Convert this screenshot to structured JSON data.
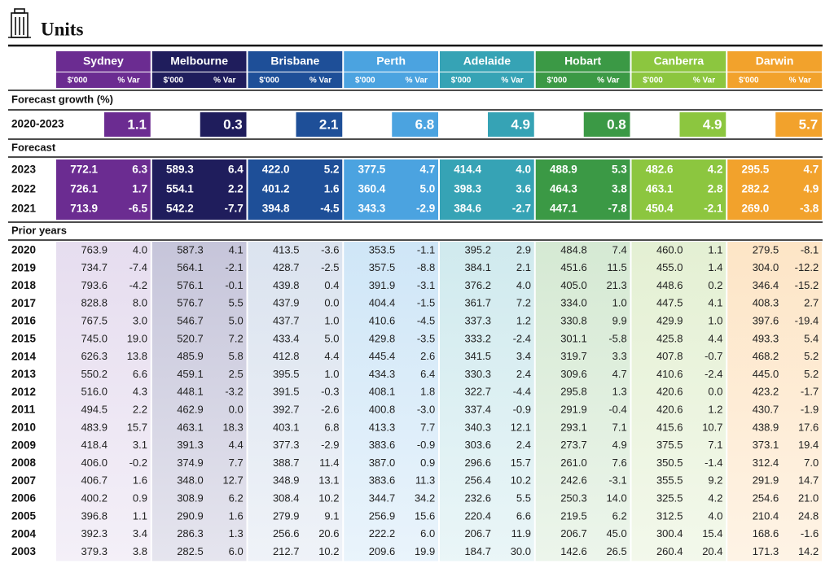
{
  "header": {
    "title": "Units"
  },
  "table": {
    "cities": [
      "Sydney",
      "Melbourne",
      "Brisbane",
      "Perth",
      "Adelaide",
      "Hobart",
      "Canberra",
      "Darwin"
    ],
    "columns": [
      "$'000",
      "% Var"
    ],
    "forecast_growth": {
      "label": "Forecast growth (%)",
      "period": "2020-2023",
      "values": [
        "1.1",
        "0.3",
        "2.1",
        "6.8",
        "4.9",
        "0.8",
        "4.9",
        "5.7"
      ]
    },
    "forecast": {
      "label": "Forecast",
      "rows": [
        {
          "year": "2023",
          "cells": [
            "772.1",
            "6.3",
            "589.3",
            "6.4",
            "422.0",
            "5.2",
            "377.5",
            "4.7",
            "414.4",
            "4.0",
            "488.9",
            "5.3",
            "482.6",
            "4.2",
            "295.5",
            "4.7"
          ]
        },
        {
          "year": "2022",
          "cells": [
            "726.1",
            "1.7",
            "554.1",
            "2.2",
            "401.2",
            "1.6",
            "360.4",
            "5.0",
            "398.3",
            "3.6",
            "464.3",
            "3.8",
            "463.1",
            "2.8",
            "282.2",
            "4.9"
          ]
        },
        {
          "year": "2021",
          "cells": [
            "713.9",
            "-6.5",
            "542.2",
            "-7.7",
            "394.8",
            "-4.5",
            "343.3",
            "-2.9",
            "384.6",
            "-2.7",
            "447.1",
            "-7.8",
            "450.4",
            "-2.1",
            "269.0",
            "-3.8"
          ]
        }
      ]
    },
    "prior_years": {
      "label": "Prior years",
      "rows": [
        {
          "year": "2020",
          "cells": [
            "763.9",
            "4.0",
            "587.3",
            "4.1",
            "413.5",
            "-3.6",
            "353.5",
            "-1.1",
            "395.2",
            "2.9",
            "484.8",
            "7.4",
            "460.0",
            "1.1",
            "279.5",
            "-8.1"
          ]
        },
        {
          "year": "2019",
          "cells": [
            "734.7",
            "-7.4",
            "564.1",
            "-2.1",
            "428.7",
            "-2.5",
            "357.5",
            "-8.8",
            "384.1",
            "2.1",
            "451.6",
            "11.5",
            "455.0",
            "1.4",
            "304.0",
            "-12.2"
          ]
        },
        {
          "year": "2018",
          "cells": [
            "793.6",
            "-4.2",
            "576.1",
            "-0.1",
            "439.8",
            "0.4",
            "391.9",
            "-3.1",
            "376.2",
            "4.0",
            "405.0",
            "21.3",
            "448.6",
            "0.2",
            "346.4",
            "-15.2"
          ]
        },
        {
          "year": "2017",
          "cells": [
            "828.8",
            "8.0",
            "576.7",
            "5.5",
            "437.9",
            "0.0",
            "404.4",
            "-1.5",
            "361.7",
            "7.2",
            "334.0",
            "1.0",
            "447.5",
            "4.1",
            "408.3",
            "2.7"
          ]
        },
        {
          "year": "2016",
          "cells": [
            "767.5",
            "3.0",
            "546.7",
            "5.0",
            "437.7",
            "1.0",
            "410.6",
            "-4.5",
            "337.3",
            "1.2",
            "330.8",
            "9.9",
            "429.9",
            "1.0",
            "397.6",
            "-19.4"
          ]
        },
        {
          "year": "2015",
          "cells": [
            "745.0",
            "19.0",
            "520.7",
            "7.2",
            "433.4",
            "5.0",
            "429.8",
            "-3.5",
            "333.2",
            "-2.4",
            "301.1",
            "-5.8",
            "425.8",
            "4.4",
            "493.3",
            "5.4"
          ]
        },
        {
          "year": "2014",
          "cells": [
            "626.3",
            "13.8",
            "485.9",
            "5.8",
            "412.8",
            "4.4",
            "445.4",
            "2.6",
            "341.5",
            "3.4",
            "319.7",
            "3.3",
            "407.8",
            "-0.7",
            "468.2",
            "5.2"
          ]
        },
        {
          "year": "2013",
          "cells": [
            "550.2",
            "6.6",
            "459.1",
            "2.5",
            "395.5",
            "1.0",
            "434.3",
            "6.4",
            "330.3",
            "2.4",
            "309.6",
            "4.7",
            "410.6",
            "-2.4",
            "445.0",
            "5.2"
          ]
        },
        {
          "year": "2012",
          "cells": [
            "516.0",
            "4.3",
            "448.1",
            "-3.2",
            "391.5",
            "-0.3",
            "408.1",
            "1.8",
            "322.7",
            "-4.4",
            "295.8",
            "1.3",
            "420.6",
            "0.0",
            "423.2",
            "-1.7"
          ]
        },
        {
          "year": "2011",
          "cells": [
            "494.5",
            "2.2",
            "462.9",
            "0.0",
            "392.7",
            "-2.6",
            "400.8",
            "-3.0",
            "337.4",
            "-0.9",
            "291.9",
            "-0.4",
            "420.6",
            "1.2",
            "430.7",
            "-1.9"
          ]
        },
        {
          "year": "2010",
          "cells": [
            "483.9",
            "15.7",
            "463.1",
            "18.3",
            "403.1",
            "6.8",
            "413.3",
            "7.7",
            "340.3",
            "12.1",
            "293.1",
            "7.1",
            "415.6",
            "10.7",
            "438.9",
            "17.6"
          ]
        },
        {
          "year": "2009",
          "cells": [
            "418.4",
            "3.1",
            "391.3",
            "4.4",
            "377.3",
            "-2.9",
            "383.6",
            "-0.9",
            "303.6",
            "2.4",
            "273.7",
            "4.9",
            "375.5",
            "7.1",
            "373.1",
            "19.4"
          ]
        },
        {
          "year": "2008",
          "cells": [
            "406.0",
            "-0.2",
            "374.9",
            "7.7",
            "388.7",
            "11.4",
            "387.0",
            "0.9",
            "296.6",
            "15.7",
            "261.0",
            "7.6",
            "350.5",
            "-1.4",
            "312.4",
            "7.0"
          ]
        },
        {
          "year": "2007",
          "cells": [
            "406.7",
            "1.6",
            "348.0",
            "12.7",
            "348.9",
            "13.1",
            "383.6",
            "11.3",
            "256.4",
            "10.2",
            "242.6",
            "-3.1",
            "355.5",
            "9.2",
            "291.9",
            "14.7"
          ]
        },
        {
          "year": "2006",
          "cells": [
            "400.2",
            "0.9",
            "308.9",
            "6.2",
            "308.4",
            "10.2",
            "344.7",
            "34.2",
            "232.6",
            "5.5",
            "250.3",
            "14.0",
            "325.5",
            "4.2",
            "254.6",
            "21.0"
          ]
        },
        {
          "year": "2005",
          "cells": [
            "396.8",
            "1.1",
            "290.9",
            "1.6",
            "279.9",
            "9.1",
            "256.9",
            "15.6",
            "220.4",
            "6.6",
            "219.5",
            "6.2",
            "312.5",
            "4.0",
            "210.4",
            "24.8"
          ]
        },
        {
          "year": "2004",
          "cells": [
            "392.3",
            "3.4",
            "286.3",
            "1.3",
            "256.6",
            "20.6",
            "222.2",
            "6.0",
            "206.7",
            "11.9",
            "206.7",
            "45.0",
            "300.4",
            "15.4",
            "168.6",
            "-1.6"
          ]
        },
        {
          "year": "2003",
          "cells": [
            "379.3",
            "3.8",
            "282.5",
            "6.0",
            "212.7",
            "10.2",
            "209.6",
            "19.9",
            "184.7",
            "30.0",
            "142.6",
            "26.5",
            "260.4",
            "20.4",
            "171.3",
            "14.2"
          ]
        }
      ]
    }
  }
}
